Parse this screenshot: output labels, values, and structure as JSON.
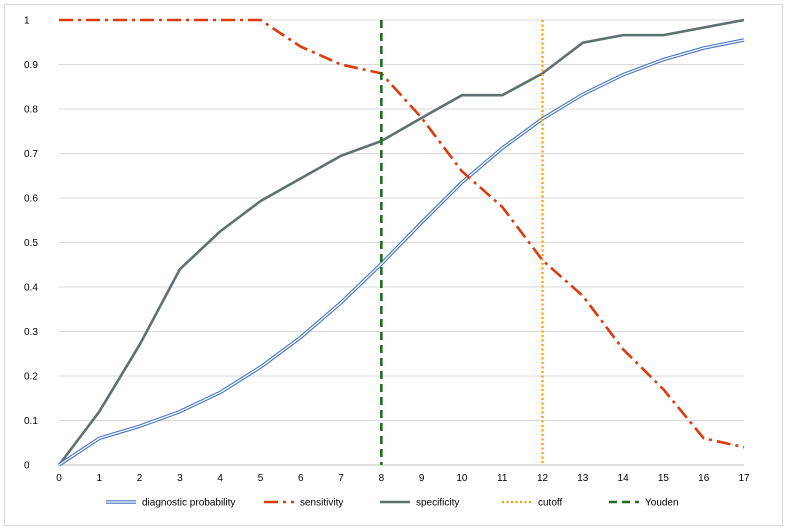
{
  "chart_data": {
    "type": "line",
    "x": [
      0,
      1,
      2,
      3,
      4,
      5,
      6,
      7,
      8,
      9,
      10,
      11,
      12,
      13,
      14,
      15,
      16,
      17
    ],
    "xlim": [
      0,
      17
    ],
    "ylim": [
      0,
      1
    ],
    "yticks": [
      "0",
      "0.1",
      "0.2",
      "0.3",
      "0.4",
      "0.5",
      "0.6",
      "0.7",
      "0.8",
      "0.9",
      "1"
    ],
    "grid": true,
    "legend_position": "bottom",
    "series": [
      {
        "name": "diagnostic probability",
        "color": "#4472c4",
        "style": "double",
        "values": [
          0,
          0.06,
          0.087,
          0.12,
          0.163,
          0.22,
          0.287,
          0.365,
          0.452,
          0.545,
          0.635,
          0.712,
          0.778,
          0.833,
          0.877,
          0.911,
          0.937,
          0.955
        ]
      },
      {
        "name": "sensitivity",
        "color": "#dc3a0f",
        "style": "dashdot",
        "values": [
          1,
          1,
          1,
          1,
          1,
          1,
          0.94,
          0.9,
          0.88,
          0.78,
          0.66,
          0.58,
          0.46,
          0.38,
          0.26,
          0.17,
          0.06,
          0.04
        ]
      },
      {
        "name": "specificity",
        "color": "#5f7070",
        "style": "solid",
        "values": [
          0,
          0.12,
          0.27,
          0.44,
          0.525,
          0.593,
          0.644,
          0.695,
          0.728,
          0.78,
          0.831,
          0.831,
          0.88,
          0.949,
          0.966,
          0.966,
          0.983,
          1.0
        ]
      }
    ],
    "vlines": [
      {
        "name": "cutoff",
        "x": 12,
        "color": "#f0a000",
        "style": "dotted"
      },
      {
        "name": "Youden",
        "x": 8,
        "color": "#1f6e1f",
        "style": "dashed"
      }
    ]
  }
}
